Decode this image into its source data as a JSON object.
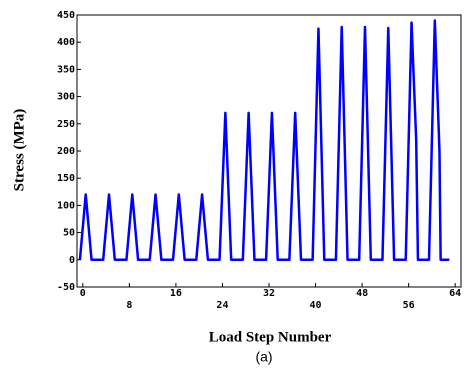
{
  "chart_data": {
    "type": "line",
    "xlabel": "Load Step Number",
    "ylabel": "Stress (MPa)",
    "caption": "(a)",
    "x": [
      -0.5,
      0.5,
      1.5,
      3.5,
      4.5,
      5.5,
      7.5,
      8.5,
      9.5,
      11.5,
      12.5,
      13.5,
      15.5,
      16.5,
      17.5,
      19.5,
      20.5,
      21.5,
      23.5,
      24.5,
      25.5,
      27.5,
      28.5,
      29.5,
      31.5,
      32.5,
      33.5,
      35.5,
      36.5,
      37.5,
      39.5,
      40.5,
      41.5,
      43.5,
      44.5,
      45.5,
      47.5,
      48.5,
      49.5,
      51.5,
      52.5,
      53.5,
      55.5,
      56.5,
      57.3,
      57.6,
      59.5,
      60.5,
      61.3,
      61.5,
      63
    ],
    "series": [
      {
        "color": "#0000ff",
        "values": [
          0,
          120,
          0,
          0,
          120,
          0,
          0,
          120,
          0,
          0,
          120,
          0,
          0,
          120,
          0,
          0,
          120,
          0,
          0,
          270,
          0,
          0,
          270,
          0,
          0,
          270,
          0,
          0,
          270,
          0,
          0,
          425,
          0,
          0,
          428,
          0,
          0,
          428,
          0,
          0,
          426,
          0,
          0,
          436,
          220,
          0,
          0,
          440,
          200,
          0,
          0
        ]
      }
    ],
    "xlim": [
      -1,
      65
    ],
    "ylim": [
      -50,
      450
    ],
    "xticks": [
      0,
      8,
      16,
      24,
      32,
      40,
      48,
      56,
      64
    ],
    "yticks": [
      -50,
      0,
      50,
      100,
      150,
      200,
      250,
      300,
      350,
      400,
      450
    ]
  }
}
